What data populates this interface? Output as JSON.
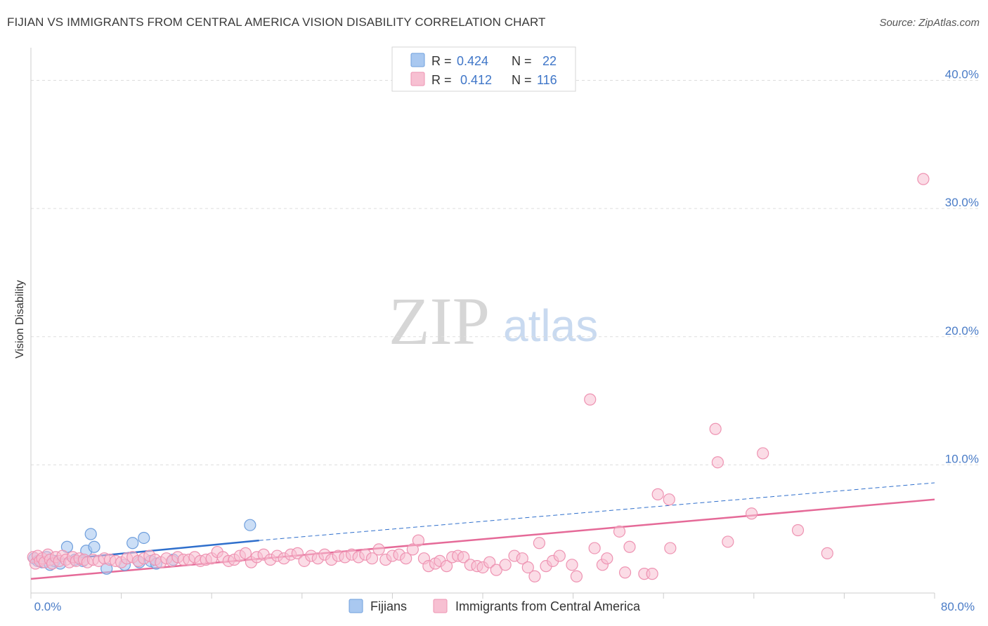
{
  "header": {
    "title": "FIJIAN VS IMMIGRANTS FROM CENTRAL AMERICA VISION DISABILITY CORRELATION CHART",
    "source": "Source: ZipAtlas.com"
  },
  "watermark": {
    "zip": "ZIP",
    "atlas": "atlas"
  },
  "stats": {
    "fijians": {
      "r_label": "R =",
      "r": "0.424",
      "n_label": "N =",
      "n": "22"
    },
    "immigrants": {
      "r_label": "R =",
      "r": "0.412",
      "n_label": "N =",
      "n": "116"
    }
  },
  "colors": {
    "fijians_fill": "#a9c8f0",
    "fijians_stroke": "#6f9fdd",
    "fijians_line": "#2f6fcc",
    "immigrants_fill": "#f7c0d2",
    "immigrants_stroke": "#ee93b2",
    "immigrants_line": "#e56a98",
    "tick_text": "#4a7cc7",
    "grid": "#dddddd"
  },
  "chart_data": {
    "type": "scatter",
    "title": "FIJIAN VS IMMIGRANTS FROM CENTRAL AMERICA VISION DISABILITY CORRELATION CHART",
    "xlabel": "",
    "ylabel": "Vision Disability",
    "xlim": [
      0,
      80
    ],
    "ylim": [
      0,
      42
    ],
    "x_tick_labels": [
      "0.0%",
      "80.0%"
    ],
    "y_ticks": [
      10,
      20,
      30,
      40
    ],
    "y_tick_labels": [
      "10.0%",
      "20.0%",
      "30.0%",
      "40.0%"
    ],
    "grid": true,
    "legend": [
      "Fijians",
      "Immigrants from Central America"
    ],
    "series": [
      {
        "name": "Fijians",
        "points": [
          [
            0.3,
            2.7
          ],
          [
            0.6,
            2.5
          ],
          [
            1.0,
            2.4
          ],
          [
            1.4,
            2.8
          ],
          [
            1.7,
            2.2
          ],
          [
            2.1,
            2.5
          ],
          [
            2.6,
            2.3
          ],
          [
            3.2,
            3.6
          ],
          [
            3.9,
            2.6
          ],
          [
            4.6,
            2.5
          ],
          [
            4.9,
            3.3
          ],
          [
            5.3,
            4.6
          ],
          [
            5.6,
            3.6
          ],
          [
            6.7,
            1.9
          ],
          [
            8.3,
            2.2
          ],
          [
            9.0,
            3.9
          ],
          [
            9.6,
            2.4
          ],
          [
            10.0,
            4.3
          ],
          [
            10.6,
            2.5
          ],
          [
            11.1,
            2.3
          ],
          [
            12.6,
            2.6
          ],
          [
            19.4,
            5.3
          ]
        ],
        "trend": {
          "x_start": 0,
          "y_start": 2.4,
          "x_end": 20.2,
          "y_end": 4.1,
          "dashed_to_x": 80,
          "dashed_to_y": 8.6
        }
      },
      {
        "name": "Immigrants from Central America",
        "points": [
          [
            0.2,
            2.8
          ],
          [
            0.4,
            2.3
          ],
          [
            0.6,
            2.9
          ],
          [
            0.8,
            2.5
          ],
          [
            1.0,
            2.7
          ],
          [
            1.2,
            2.4
          ],
          [
            1.5,
            3.0
          ],
          [
            1.7,
            2.6
          ],
          [
            1.9,
            2.3
          ],
          [
            2.2,
            2.8
          ],
          [
            2.5,
            2.5
          ],
          [
            2.8,
            2.9
          ],
          [
            3.1,
            2.6
          ],
          [
            3.4,
            2.4
          ],
          [
            3.7,
            2.8
          ],
          [
            4.0,
            2.5
          ],
          [
            4.3,
            2.7
          ],
          [
            4.7,
            2.6
          ],
          [
            5.0,
            2.4
          ],
          [
            5.5,
            2.6
          ],
          [
            6.0,
            2.5
          ],
          [
            6.5,
            2.7
          ],
          [
            7.0,
            2.6
          ],
          [
            7.5,
            2.5
          ],
          [
            8.0,
            2.4
          ],
          [
            8.5,
            2.7
          ],
          [
            9.0,
            2.8
          ],
          [
            9.5,
            2.5
          ],
          [
            10.0,
            2.7
          ],
          [
            10.5,
            2.9
          ],
          [
            11.0,
            2.6
          ],
          [
            11.5,
            2.4
          ],
          [
            12.0,
            2.7
          ],
          [
            12.5,
            2.5
          ],
          [
            13.0,
            2.8
          ],
          [
            13.5,
            2.6
          ],
          [
            14.0,
            2.6
          ],
          [
            14.5,
            2.8
          ],
          [
            15.0,
            2.5
          ],
          [
            15.5,
            2.6
          ],
          [
            16.0,
            2.7
          ],
          [
            16.5,
            3.2
          ],
          [
            17.0,
            2.8
          ],
          [
            17.5,
            2.5
          ],
          [
            18.0,
            2.6
          ],
          [
            18.5,
            2.9
          ],
          [
            19.0,
            3.1
          ],
          [
            19.5,
            2.4
          ],
          [
            20.0,
            2.8
          ],
          [
            20.6,
            3.0
          ],
          [
            21.2,
            2.6
          ],
          [
            21.8,
            2.9
          ],
          [
            22.4,
            2.7
          ],
          [
            23.0,
            3.0
          ],
          [
            23.6,
            3.1
          ],
          [
            24.2,
            2.5
          ],
          [
            24.8,
            2.9
          ],
          [
            25.4,
            2.7
          ],
          [
            26.0,
            3.0
          ],
          [
            26.6,
            2.6
          ],
          [
            27.2,
            2.9
          ],
          [
            27.8,
            2.8
          ],
          [
            28.4,
            3.0
          ],
          [
            29.0,
            2.8
          ],
          [
            29.6,
            3.0
          ],
          [
            30.2,
            2.7
          ],
          [
            30.8,
            3.4
          ],
          [
            31.4,
            2.6
          ],
          [
            32.0,
            2.9
          ],
          [
            32.6,
            3.0
          ],
          [
            33.2,
            2.7
          ],
          [
            33.8,
            3.4
          ],
          [
            34.3,
            4.1
          ],
          [
            34.8,
            2.7
          ],
          [
            35.2,
            2.1
          ],
          [
            35.8,
            2.3
          ],
          [
            36.2,
            2.5
          ],
          [
            36.8,
            2.1
          ],
          [
            37.3,
            2.8
          ],
          [
            37.8,
            2.9
          ],
          [
            38.3,
            2.8
          ],
          [
            38.9,
            2.2
          ],
          [
            39.5,
            2.1
          ],
          [
            40.0,
            2.0
          ],
          [
            40.6,
            2.4
          ],
          [
            41.2,
            1.8
          ],
          [
            42.0,
            2.2
          ],
          [
            42.8,
            2.9
          ],
          [
            43.5,
            2.7
          ],
          [
            44.0,
            2.0
          ],
          [
            44.6,
            1.3
          ],
          [
            45.0,
            3.9
          ],
          [
            45.6,
            2.1
          ],
          [
            46.2,
            2.5
          ],
          [
            46.8,
            2.9
          ],
          [
            47.9,
            2.2
          ],
          [
            48.3,
            1.3
          ],
          [
            49.5,
            15.1
          ],
          [
            49.9,
            3.5
          ],
          [
            50.6,
            2.2
          ],
          [
            51.0,
            2.7
          ],
          [
            52.1,
            4.8
          ],
          [
            52.6,
            1.6
          ],
          [
            53.0,
            3.6
          ],
          [
            54.3,
            1.5
          ],
          [
            55.0,
            1.5
          ],
          [
            55.5,
            7.7
          ],
          [
            56.5,
            7.3
          ],
          [
            56.6,
            3.5
          ],
          [
            60.6,
            12.8
          ],
          [
            60.8,
            10.2
          ],
          [
            61.7,
            4.0
          ],
          [
            63.8,
            6.2
          ],
          [
            64.8,
            10.9
          ],
          [
            67.9,
            4.9
          ],
          [
            70.5,
            3.1
          ],
          [
            79.0,
            32.3
          ]
        ],
        "trend": {
          "x_start": 0,
          "y_start": 1.1,
          "x_end": 80,
          "y_end": 7.3
        }
      }
    ]
  }
}
